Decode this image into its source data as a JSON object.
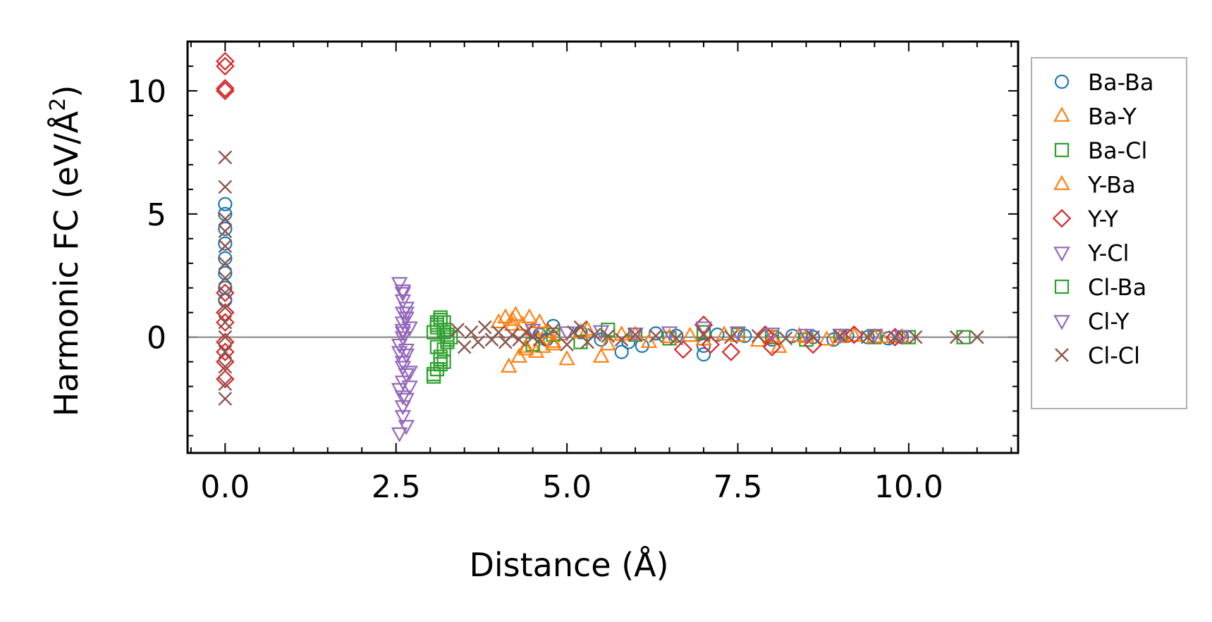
{
  "chart_data": {
    "type": "scatter",
    "title": "",
    "xlabel": "Distance (Å)",
    "ylabel": "Harmonic FC (eV/Å²)",
    "ylabel_parts": {
      "main": "Harmonic FC (eV/Å",
      "sup": "2",
      "close": ")"
    },
    "xlim": [
      -0.55,
      11.6
    ],
    "ylim": [
      -4.7,
      12.0
    ],
    "xticks": [
      0.0,
      2.5,
      5.0,
      7.5,
      10.0
    ],
    "xtick_labels": [
      "0.0",
      "2.5",
      "5.0",
      "7.5",
      "10.0"
    ],
    "yticks": [
      0,
      5,
      10
    ],
    "ytick_labels": [
      "0",
      "5",
      "10"
    ],
    "grid": false,
    "zero_line": true,
    "legend_position": "outside-right",
    "series": [
      {
        "name": "Ba-Ba",
        "marker": "circle",
        "color": "#1f77b4",
        "x": [
          0,
          0,
          0,
          0,
          0,
          0,
          0,
          0,
          4.6,
          4.7,
          4.8,
          5.2,
          5.5,
          5.8,
          5.9,
          6.1,
          6.3,
          6.6,
          7.0,
          7.0,
          7.2,
          7.6,
          8.0,
          8.3,
          8.6,
          8.9,
          9.1,
          9.4,
          9.7,
          9.9
        ],
        "y": [
          5.4,
          5.0,
          4.4,
          3.8,
          3.2,
          2.6,
          2.0,
          1.5,
          0.1,
          -0.1,
          0.45,
          0.2,
          -0.1,
          -0.6,
          -0.2,
          -0.35,
          0.15,
          0.05,
          -0.7,
          -0.35,
          0.1,
          0.05,
          -0.1,
          0.05,
          0.0,
          -0.1,
          0.05,
          0.0,
          -0.05,
          0.0
        ]
      },
      {
        "name": "Ba-Y",
        "marker": "triangle-up",
        "color": "#ff7f0e",
        "x": [
          4.0,
          4.1,
          4.15,
          4.2,
          4.25,
          4.3,
          4.35,
          4.4,
          4.45,
          4.5,
          4.55,
          4.6,
          4.65,
          4.7,
          4.8,
          4.9,
          5.0,
          5.3,
          5.5,
          5.8,
          6.2,
          6.8,
          7.3,
          7.8,
          8.1,
          8.4,
          8.8,
          9.2,
          9.6,
          9.9
        ],
        "y": [
          0.6,
          0.8,
          -1.2,
          0.7,
          0.9,
          -0.8,
          0.5,
          -0.5,
          0.8,
          0.3,
          -0.6,
          0.6,
          -0.4,
          0.2,
          -0.3,
          0.1,
          -0.9,
          0.3,
          -0.8,
          0.1,
          -0.2,
          0.05,
          0.1,
          -0.15,
          -0.4,
          0.05,
          -0.1,
          0.05,
          0.0,
          0.0
        ]
      },
      {
        "name": "Ba-Cl",
        "marker": "square",
        "color": "#2ca02c",
        "x": [
          3.05,
          3.1,
          3.1,
          3.15,
          3.15,
          3.2,
          3.2,
          3.25,
          3.25,
          3.3,
          3.1,
          3.2,
          3.05,
          3.15,
          4.5,
          4.8,
          5.2,
          5.6,
          6.0,
          6.5,
          7.0,
          7.5,
          8.0,
          8.5,
          9.0,
          9.5,
          10.0,
          10.8
        ],
        "y": [
          -1.6,
          -1.3,
          0.6,
          -0.8,
          0.8,
          0.3,
          -0.5,
          0.1,
          -0.2,
          0.0,
          0.4,
          -1.0,
          0.2,
          0.7,
          -0.3,
          0.1,
          -0.2,
          0.3,
          0.1,
          -0.05,
          0.2,
          0.1,
          0.0,
          -0.1,
          0.05,
          0.0,
          0.0,
          0.0
        ]
      },
      {
        "name": "Y-Ba",
        "marker": "triangle-up",
        "color": "#ff7f0e",
        "x": [
          4.2,
          4.4,
          4.6,
          4.8,
          5.2,
          5.6,
          6.0,
          6.5,
          7.0,
          7.5,
          8.0,
          8.5,
          9.0,
          9.5
        ],
        "y": [
          0.5,
          -0.4,
          0.6,
          -0.2,
          0.2,
          -0.3,
          0.1,
          0.0,
          -0.1,
          0.05,
          0.0,
          0.0,
          0.0,
          0.0
        ]
      },
      {
        "name": "Y-Y",
        "marker": "diamond",
        "color": "#d62728",
        "x": [
          0,
          0,
          0,
          0,
          0,
          0,
          0,
          0,
          0,
          0,
          0,
          6.7,
          7.0,
          7.1,
          7.4,
          7.9,
          8.0,
          8.6,
          9.2,
          9.8
        ],
        "y": [
          11.2,
          11.0,
          10.1,
          10.0,
          1.8,
          1.0,
          0.6,
          -0.2,
          -0.6,
          -1.0,
          -1.7,
          -0.5,
          0.5,
          -0.3,
          -0.6,
          0.1,
          -0.4,
          -0.3,
          0.1,
          0.0
        ]
      },
      {
        "name": "Y-Cl",
        "marker": "triangle-down",
        "color": "#9467bd",
        "x": [
          2.55,
          2.6,
          2.6,
          2.65,
          2.65,
          2.7,
          2.6,
          2.55,
          2.65,
          2.6,
          2.7,
          2.6,
          2.55,
          2.65,
          2.6,
          2.6,
          2.65,
          2.55,
          2.6,
          2.65,
          2.6,
          2.7,
          2.6,
          2.6
        ],
        "y": [
          2.2,
          1.9,
          1.5,
          1.2,
          0.8,
          0.4,
          0.0,
          -0.3,
          -0.7,
          -1.0,
          -1.4,
          -1.8,
          -2.1,
          -2.5,
          -2.8,
          -3.2,
          -3.6,
          -3.9,
          0.2,
          -0.5,
          -1.2,
          -2.0,
          1.0,
          0.6
        ]
      },
      {
        "name": "Cl-Ba",
        "marker": "square",
        "color": "#2ca02c",
        "x": [
          3.05,
          3.1,
          3.15,
          3.2,
          3.25,
          3.1,
          3.2,
          3.15
        ],
        "y": [
          -1.5,
          0.5,
          -0.9,
          0.6,
          -0.1,
          -0.4,
          0.2,
          -1.1
        ]
      },
      {
        "name": "Cl-Y",
        "marker": "triangle-down",
        "color": "#9467bd",
        "x": [
          2.6,
          2.65,
          2.6,
          2.55,
          2.65,
          2.6,
          4.5,
          5.0,
          5.5,
          6.0,
          6.5,
          7.0,
          7.5,
          8.0,
          8.5,
          9.0,
          9.5,
          9.9
        ],
        "y": [
          1.8,
          1.0,
          0.3,
          -0.6,
          -1.5,
          -2.4,
          0.3,
          0.2,
          0.25,
          0.15,
          0.2,
          0.4,
          0.2,
          0.15,
          0.1,
          0.1,
          0.1,
          0.05
        ]
      },
      {
        "name": "Cl-Cl",
        "marker": "x",
        "color": "#8c564b",
        "x": [
          0,
          0,
          0,
          0,
          0,
          0,
          0,
          0,
          0,
          0,
          0,
          0,
          0,
          0,
          0,
          3.4,
          3.5,
          3.6,
          3.7,
          3.8,
          3.9,
          4.0,
          4.1,
          4.2,
          4.3,
          4.4,
          4.5,
          4.6,
          4.8,
          5.0,
          5.1,
          5.2,
          5.3,
          5.4,
          5.6,
          5.8,
          6.0,
          6.3,
          6.6,
          7.0,
          7.4,
          7.8,
          8.2,
          8.6,
          9.0,
          9.4,
          9.8,
          10.1,
          10.7,
          11.0
        ],
        "y": [
          7.3,
          6.1,
          4.8,
          4.3,
          3.7,
          3.0,
          2.4,
          1.8,
          1.2,
          0.6,
          0.0,
          -0.6,
          -1.2,
          -1.9,
          -2.5,
          0.3,
          -0.4,
          0.2,
          -0.2,
          0.4,
          -0.1,
          0.2,
          -0.2,
          0.1,
          -0.1,
          0.2,
          0.0,
          -0.1,
          0.3,
          -0.3,
          0.2,
          0.4,
          -0.2,
          0.1,
          0.05,
          -0.1,
          0.1,
          0.05,
          -0.05,
          0.1,
          0.0,
          0.05,
          -0.05,
          0.0,
          0.05,
          0.0,
          0.0,
          0.0,
          0.0,
          0.0
        ]
      }
    ]
  }
}
